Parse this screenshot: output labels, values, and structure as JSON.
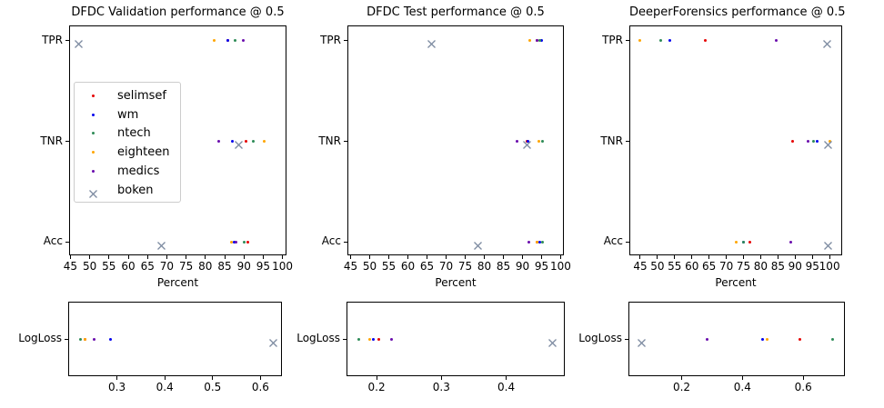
{
  "figure": {
    "background": "#ffffff",
    "axes_border_color": "#000000"
  },
  "legend": {
    "location_chart": 0,
    "items_follow_series": true
  },
  "chart_data": [
    {
      "type": "scatter",
      "title": "DFDC Validation performance @ 0.5",
      "xlabel": "Percent",
      "rows": [
        "TPR",
        "TNR",
        "Acc"
      ],
      "xlim": [
        44.9,
        100.8
      ],
      "xticks": [
        45,
        50,
        55,
        60,
        65,
        70,
        75,
        80,
        85,
        90,
        95,
        100
      ],
      "xtick_labels": [
        "45",
        "50",
        "55",
        "60",
        "65",
        "70",
        "75",
        "80",
        "85",
        "90",
        "95",
        "100"
      ],
      "grid": false,
      "series": [
        {
          "name": "selimsef",
          "color": "#e60000",
          "marker": "dot",
          "values": [
            85.8,
            90.6,
            90.9
          ]
        },
        {
          "name": "wm",
          "color": "#0000ee",
          "marker": "dot",
          "values": [
            85.8,
            87.0,
            87.4
          ]
        },
        {
          "name": "ntech",
          "color": "#2e8b57",
          "marker": "dot",
          "values": [
            87.6,
            92.5,
            90.0
          ]
        },
        {
          "name": "eighteen",
          "color": "#ffa500",
          "marker": "dot",
          "values": [
            82.3,
            95.3,
            86.7
          ]
        },
        {
          "name": "medics",
          "color": "#6a0dad",
          "marker": "dot",
          "values": [
            89.9,
            83.5,
            87.9
          ]
        },
        {
          "name": "boken",
          "color": "#7d8ba1",
          "marker": "x",
          "values": [
            47.1,
            88.7,
            68.5
          ]
        }
      ]
    },
    {
      "type": "scatter",
      "title": "DFDC Test performance @ 0.5",
      "xlabel": "Percent",
      "rows": [
        "TPR",
        "TNR",
        "Acc"
      ],
      "xlim": [
        44.4,
        100.6
      ],
      "xticks": [
        45,
        50,
        55,
        60,
        65,
        70,
        75,
        80,
        85,
        90,
        95,
        100
      ],
      "xtick_labels": [
        "45",
        "50",
        "55",
        "60",
        "65",
        "70",
        "75",
        "80",
        "85",
        "90",
        "95",
        "100"
      ],
      "grid": false,
      "series": [
        {
          "name": "selimsef",
          "color": "#e60000",
          "marker": "dot",
          "values": [
            93.9,
            91.3,
            93.8
          ]
        },
        {
          "name": "wm",
          "color": "#0000ee",
          "marker": "dot",
          "values": [
            95.1,
            91.5,
            94.5
          ]
        },
        {
          "name": "ntech",
          "color": "#2e8b57",
          "marker": "dot",
          "values": [
            94.5,
            95.3,
            95.2
          ]
        },
        {
          "name": "eighteen",
          "color": "#ffa500",
          "marker": "dot",
          "values": [
            91.8,
            94.4,
            93.8
          ]
        },
        {
          "name": "medics",
          "color": "#6a0dad",
          "marker": "dot",
          "values": [
            93.9,
            88.5,
            91.6
          ]
        },
        {
          "name": "boken",
          "color": "#7d8ba1",
          "marker": "x",
          "values": [
            66.2,
            91.2,
            78.4
          ]
        }
      ]
    },
    {
      "type": "scatter",
      "title": "DeeperForensics performance @ 0.5",
      "xlabel": "Percent",
      "rows": [
        "TPR",
        "TNR",
        "Acc"
      ],
      "xlim": [
        42.1,
        103.4
      ],
      "xticks": [
        45,
        50,
        55,
        60,
        65,
        70,
        75,
        80,
        85,
        90,
        95,
        100
      ],
      "xtick_labels": [
        "45",
        "50",
        "55",
        "60",
        "65",
        "70",
        "75",
        "80",
        "85",
        "90",
        "95",
        "100"
      ],
      "grid": false,
      "series": [
        {
          "name": "selimsef",
          "color": "#e60000",
          "marker": "dot",
          "values": [
            63.8,
            89.3,
            76.8
          ]
        },
        {
          "name": "wm",
          "color": "#0000ee",
          "marker": "dot",
          "values": [
            53.5,
            96.5,
            75.0
          ]
        },
        {
          "name": "ntech",
          "color": "#2e8b57",
          "marker": "dot",
          "values": [
            51.0,
            95.3,
            75.0
          ]
        },
        {
          "name": "eighteen",
          "color": "#ffa500",
          "marker": "dot",
          "values": [
            44.8,
            100.0,
            72.9
          ]
        },
        {
          "name": "medics",
          "color": "#6a0dad",
          "marker": "dot",
          "values": [
            84.5,
            93.7,
            88.8
          ]
        },
        {
          "name": "boken",
          "color": "#7d8ba1",
          "marker": "x",
          "values": [
            99.2,
            99.6,
            99.5
          ]
        }
      ]
    },
    {
      "type": "scatter",
      "title": null,
      "xlabel": null,
      "rows": [
        "LogLoss"
      ],
      "xlim": [
        0.2,
        0.643
      ],
      "xticks": [
        0.3,
        0.4,
        0.5,
        0.6
      ],
      "xtick_labels": [
        "0.3",
        "0.4",
        "0.5",
        "0.6"
      ],
      "grid": false,
      "series": [
        {
          "name": "selimsef",
          "color": "#e60000",
          "marker": "dot",
          "values": [
            0.233
          ]
        },
        {
          "name": "wm",
          "color": "#0000ee",
          "marker": "dot",
          "values": [
            0.286
          ]
        },
        {
          "name": "ntech",
          "color": "#2e8b57",
          "marker": "dot",
          "values": [
            0.223
          ]
        },
        {
          "name": "eighteen",
          "color": "#ffa500",
          "marker": "dot",
          "values": [
            0.233
          ]
        },
        {
          "name": "medics",
          "color": "#6a0dad",
          "marker": "dot",
          "values": [
            0.252
          ]
        },
        {
          "name": "boken",
          "color": "#7d8ba1",
          "marker": "x",
          "values": [
            0.627
          ]
        }
      ]
    },
    {
      "type": "scatter",
      "title": null,
      "xlabel": null,
      "rows": [
        "LogLoss"
      ],
      "xlim": [
        0.155,
        0.489
      ],
      "xticks": [
        0.2,
        0.3,
        0.4
      ],
      "xtick_labels": [
        "0.2",
        "0.3",
        "0.4"
      ],
      "grid": false,
      "series": [
        {
          "name": "selimsef",
          "color": "#e60000",
          "marker": "dot",
          "values": [
            0.204
          ]
        },
        {
          "name": "wm",
          "color": "#0000ee",
          "marker": "dot",
          "values": [
            0.195
          ]
        },
        {
          "name": "ntech",
          "color": "#2e8b57",
          "marker": "dot",
          "values": [
            0.173
          ]
        },
        {
          "name": "eighteen",
          "color": "#ffa500",
          "marker": "dot",
          "values": [
            0.19
          ]
        },
        {
          "name": "medics",
          "color": "#6a0dad",
          "marker": "dot",
          "values": [
            0.223
          ]
        },
        {
          "name": "boken",
          "color": "#7d8ba1",
          "marker": "x",
          "values": [
            0.471
          ]
        }
      ]
    },
    {
      "type": "scatter",
      "title": null,
      "xlabel": null,
      "rows": [
        "LogLoss"
      ],
      "xlim": [
        0.028,
        0.734
      ],
      "xticks": [
        0.2,
        0.4,
        0.6
      ],
      "xtick_labels": [
        "0.2",
        "0.4",
        "0.6"
      ],
      "grid": false,
      "series": [
        {
          "name": "selimsef",
          "color": "#e60000",
          "marker": "dot",
          "values": [
            0.589
          ]
        },
        {
          "name": "wm",
          "color": "#0000ee",
          "marker": "dot",
          "values": [
            0.466
          ]
        },
        {
          "name": "ntech",
          "color": "#2e8b57",
          "marker": "dot",
          "values": [
            0.698
          ]
        },
        {
          "name": "eighteen",
          "color": "#ffa500",
          "marker": "dot",
          "values": [
            0.48
          ]
        },
        {
          "name": "medics",
          "color": "#6a0dad",
          "marker": "dot",
          "values": [
            0.285
          ]
        },
        {
          "name": "boken",
          "color": "#7d8ba1",
          "marker": "x",
          "values": [
            0.067
          ]
        }
      ]
    }
  ]
}
